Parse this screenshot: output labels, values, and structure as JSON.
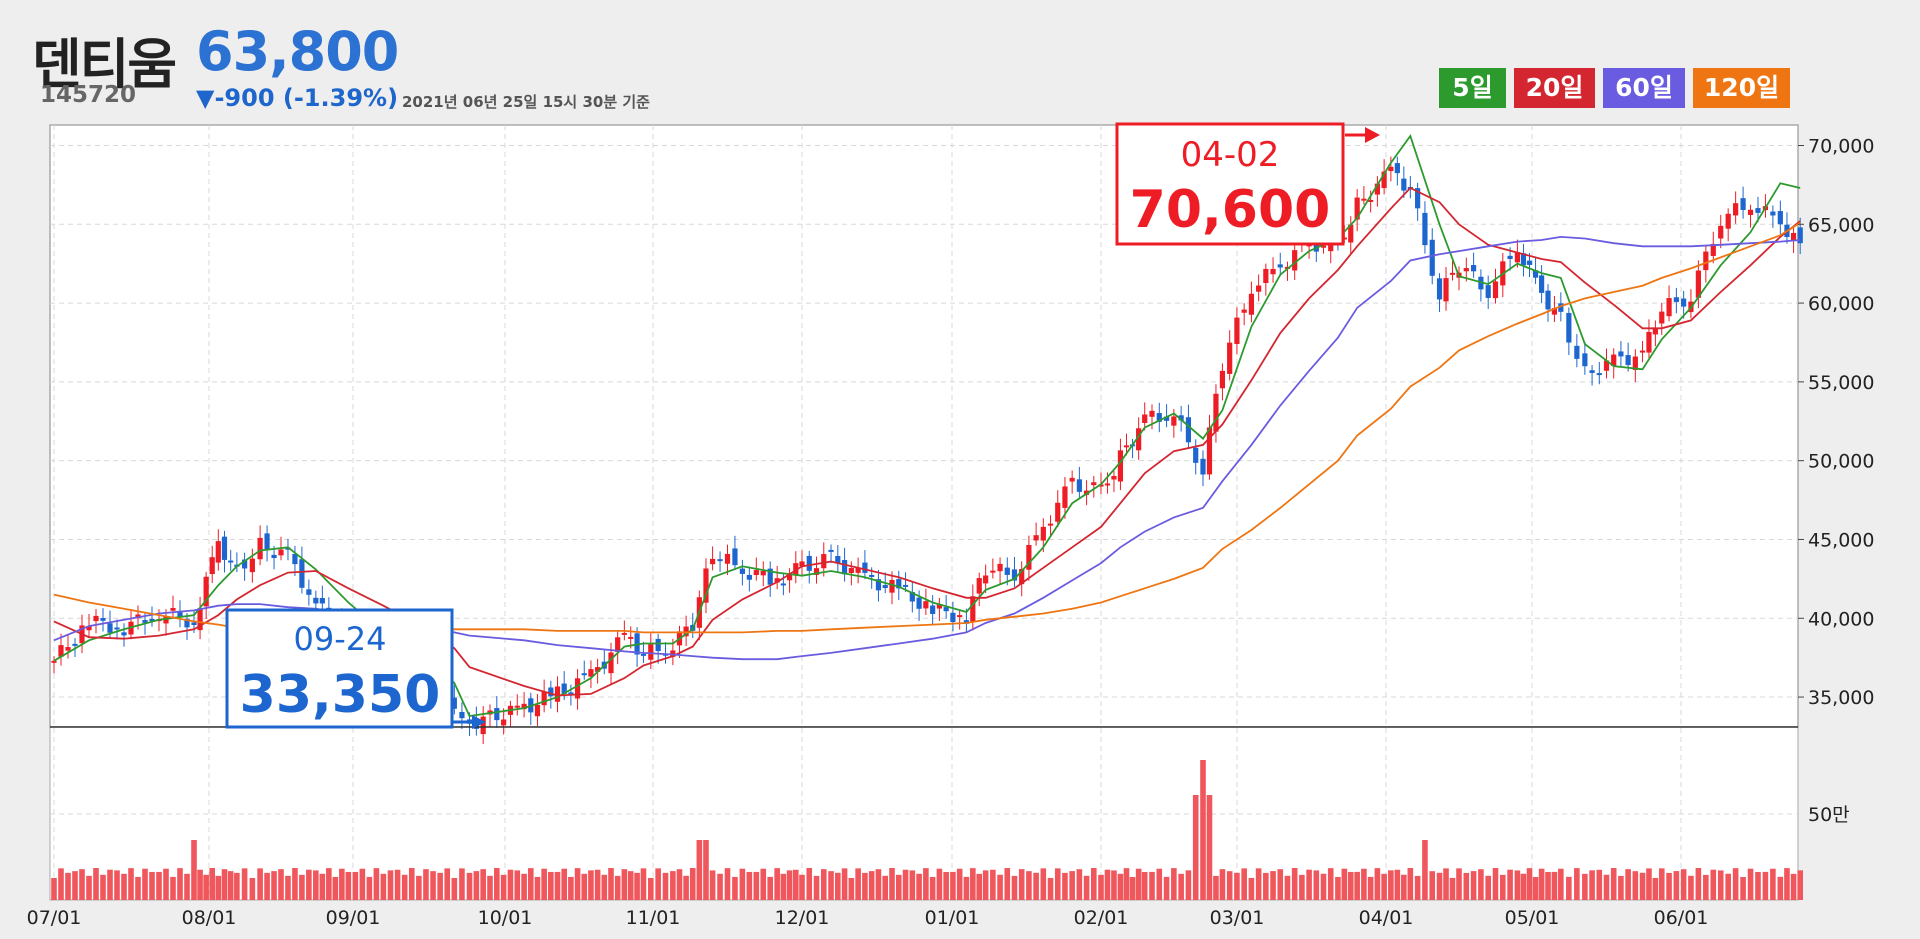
{
  "header": {
    "name": "덴티움",
    "code": "145720",
    "price": "63,800",
    "change": "▼-900 (-1.39%)",
    "timestamp": "2021년 06년 25일 15시 30분 기준"
  },
  "legend": [
    {
      "label": "5일",
      "color": "#2d9a2d"
    },
    {
      "label": "20일",
      "color": "#d42630"
    },
    {
      "label": "60일",
      "color": "#6a5ce0"
    },
    {
      "label": "120일",
      "color": "#ee7511"
    }
  ],
  "callouts": {
    "high": {
      "date": "04-02",
      "value": "70,600",
      "color": "#ee1c24"
    },
    "low": {
      "date": "09-24",
      "value": "33,350",
      "color": "#1d66d0"
    }
  },
  "chart_data": {
    "type": "candlestick",
    "x_tick_labels": [
      "07/01",
      "08/01",
      "09/01",
      "10/01",
      "11/01",
      "12/01",
      "01/01",
      "02/01",
      "03/01",
      "04/01",
      "05/01",
      "06/01"
    ],
    "y_tick_labels": [
      "70,000",
      "65,000",
      "60,000",
      "55,000",
      "50,000",
      "45,000",
      "40,000",
      "35,000"
    ],
    "ylim": [
      33100,
      71300
    ],
    "volume_tick_label": "50만",
    "close_series": [
      [
        "07/01",
        37300
      ],
      [
        "07/08",
        39800
      ],
      [
        "07/15",
        39400
      ],
      [
        "07/22",
        40400
      ],
      [
        "07/29",
        39800
      ],
      [
        "08/03",
        44800
      ],
      [
        "08/07",
        43000
      ],
      [
        "08/12",
        44600
      ],
      [
        "08/18",
        44000
      ],
      [
        "08/24",
        40800
      ],
      [
        "08/31",
        39200
      ],
      [
        "09/07",
        38100
      ],
      [
        "09/14",
        37000
      ],
      [
        "09/21",
        34600
      ],
      [
        "09/24",
        33350
      ],
      [
        "10/05",
        34300
      ],
      [
        "10/12",
        35200
      ],
      [
        "10/19",
        36300
      ],
      [
        "10/26",
        38800
      ],
      [
        "10/30",
        37700
      ],
      [
        "11/05",
        38300
      ],
      [
        "11/09",
        39700
      ],
      [
        "11/13",
        44200
      ],
      [
        "11/19",
        43000
      ],
      [
        "11/26",
        42400
      ],
      [
        "12/01",
        43200
      ],
      [
        "12/07",
        43800
      ],
      [
        "12/14",
        42500
      ],
      [
        "12/21",
        41800
      ],
      [
        "12/28",
        40500
      ],
      [
        "01/04",
        40100
      ],
      [
        "01/08",
        43200
      ],
      [
        "01/14",
        42700
      ],
      [
        "01/20",
        45800
      ],
      [
        "01/26",
        48600
      ],
      [
        "02/01",
        48000
      ],
      [
        "02/05",
        50200
      ],
      [
        "02/10",
        52700
      ],
      [
        "02/16",
        52900
      ],
      [
        "02/22",
        49500
      ],
      [
        "02/26",
        56200
      ],
      [
        "03/04",
        61000
      ],
      [
        "03/10",
        62400
      ],
      [
        "03/16",
        63800
      ],
      [
        "03/22",
        63600
      ],
      [
        "03/26",
        66200
      ],
      [
        "04/02",
        68300
      ],
      [
        "04/06",
        67200
      ],
      [
        "04/12",
        60500
      ],
      [
        "04/16",
        62400
      ],
      [
        "04/22",
        60800
      ],
      [
        "04/28",
        63500
      ],
      [
        "05/03",
        60600
      ],
      [
        "05/07",
        59100
      ],
      [
        "05/12",
        55500
      ],
      [
        "05/18",
        56300
      ],
      [
        "05/24",
        56800
      ],
      [
        "05/28",
        59600
      ],
      [
        "06/03",
        60500
      ],
      [
        "06/09",
        65400
      ],
      [
        "06/15",
        66300
      ],
      [
        "06/21",
        65100
      ],
      [
        "06/25",
        63800
      ]
    ],
    "ma_lines": [
      {
        "name": "5일",
        "values": [
          37300,
          38600,
          39300,
          39900,
          40200,
          42100,
          43300,
          44300,
          44500,
          43100,
          41000,
          39100,
          38000,
          35900,
          33800,
          34300,
          35000,
          36200,
          38200,
          38400,
          38400,
          39300,
          42600,
          43300,
          42900,
          42700,
          43000,
          42600,
          42000,
          41000,
          40400,
          41800,
          42500,
          44500,
          47300,
          48500,
          49900,
          52100,
          53000,
          51400,
          53200,
          58500,
          61800,
          63300,
          64100,
          65400,
          68900,
          70600,
          65000,
          61700,
          61200,
          62500,
          61900,
          61600,
          57400,
          56000,
          55800,
          57700,
          59700,
          62400,
          64500,
          67600,
          67300
        ]
      },
      {
        "name": "20일",
        "values": [
          39800,
          38800,
          38700,
          38900,
          39300,
          40200,
          41200,
          42100,
          42900,
          43000,
          41900,
          40800,
          39600,
          38100,
          36900,
          35700,
          35100,
          35200,
          36200,
          37000,
          37600,
          38200,
          39900,
          41200,
          42300,
          43300,
          43600,
          43100,
          42600,
          41900,
          41300,
          41300,
          41900,
          43200,
          44500,
          45800,
          47300,
          49200,
          50600,
          51000,
          52300,
          55100,
          58100,
          60300,
          62100,
          63600,
          66000,
          67300,
          66400,
          65000,
          63700,
          63200,
          62800,
          62600,
          61300,
          59900,
          58400,
          58400,
          58900,
          60700,
          62400,
          64200,
          65200
        ]
      },
      {
        "name": "60일",
        "values": [
          38600,
          39500,
          39900,
          40300,
          40500,
          40800,
          40900,
          40900,
          40700,
          40600,
          40300,
          39800,
          39500,
          39100,
          38900,
          38600,
          38300,
          38100,
          37900,
          37800,
          37700,
          37600,
          37500,
          37400,
          37400,
          37600,
          37800,
          38100,
          38400,
          38700,
          39100,
          39700,
          40300,
          41300,
          42400,
          43500,
          44500,
          45500,
          46400,
          47000,
          48700,
          51000,
          53500,
          55700,
          57800,
          59700,
          61400,
          62700,
          63100,
          63300,
          63600,
          63900,
          64000,
          64200,
          64100,
          63800,
          63600,
          63600,
          63600,
          63700,
          63800,
          63900,
          64000
        ]
      },
      {
        "name": "120일",
        "values": [
          41500,
          41000,
          40600,
          40200,
          39800,
          39600,
          39400,
          39300,
          39300,
          39300,
          39300,
          39300,
          39300,
          39300,
          39300,
          39300,
          39200,
          39200,
          39200,
          39100,
          39100,
          39100,
          39100,
          39100,
          39200,
          39200,
          39300,
          39400,
          39500,
          39600,
          39700,
          39900,
          40100,
          40300,
          40600,
          41000,
          41400,
          41900,
          42500,
          43200,
          44400,
          45600,
          47000,
          48500,
          50000,
          51600,
          53300,
          54700,
          55900,
          57000,
          57900,
          58700,
          59300,
          59800,
          60300,
          60700,
          61100,
          61600,
          62200,
          62900,
          63600,
          64300,
          65100
        ]
      }
    ],
    "volume_bars": [
      "07/01:low",
      "07/29:mid",
      "08/03:high",
      "08/24:mid",
      "09/24:mid",
      "10/30:high",
      "11/13:high",
      "12/01:mid",
      "01/04:mid",
      "02/16:high",
      "02/22:peak",
      "04/16:high",
      "05/12:mid",
      "06/09:mid"
    ]
  }
}
